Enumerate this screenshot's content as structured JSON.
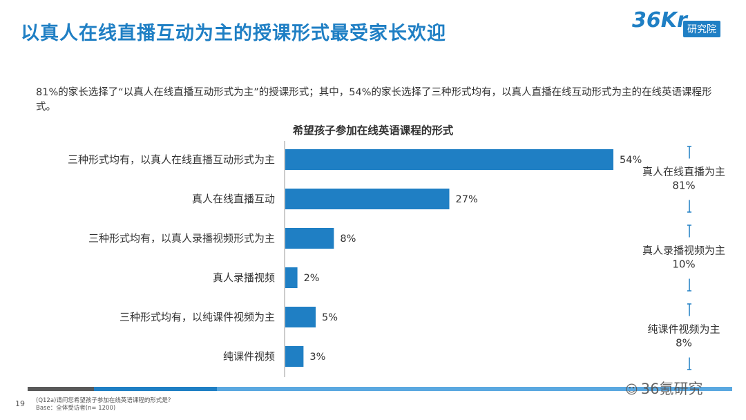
{
  "header": {
    "title": "以真人在线直播互动为主的授课形式最受家长欢迎",
    "logo_mark": "36Kr",
    "logo_sub": "研究院"
  },
  "intro": "81%的家长选择了“以真人在线直播互动形式为主”的授课形式；其中，54%的家长选择了三种形式均有，以真人直播在线互动形式为主的在线英语课程形式。",
  "colors": {
    "bar": "#1f7fc4",
    "title": "#1f7fc4"
  },
  "chart_data": {
    "type": "bar",
    "orientation": "horizontal",
    "title": "希望孩子参加在线英语课程的形式",
    "categories": [
      "三种形式均有，以真人在线直播互动形式为主",
      "真人在线直播互动",
      "三种形式均有，以真人录播视频形式为主",
      "真人录播视频",
      "三种形式均有，以纯课件视频为主",
      "纯课件视频"
    ],
    "values": [
      54,
      27,
      8,
      2,
      5,
      3
    ],
    "value_labels": [
      "54%",
      "27%",
      "8%",
      "2%",
      "5%",
      "3%"
    ],
    "xlim": [
      0,
      54
    ],
    "groups": [
      {
        "label": "真人在线直播为主",
        "value": "81%",
        "members": [
          0,
          1
        ]
      },
      {
        "label": "真人录播视频为主",
        "value": "10%",
        "members": [
          2,
          3
        ]
      },
      {
        "label": "纯课件视频为主",
        "value": "8%",
        "members": [
          4,
          5
        ]
      }
    ]
  },
  "footer": {
    "page": "19",
    "question": "(Q12a)请问您希望孩子参加在线英语课程的形式是？",
    "base": "Base：全体受访者(n= 1200)",
    "watermark": "36氪研究"
  }
}
